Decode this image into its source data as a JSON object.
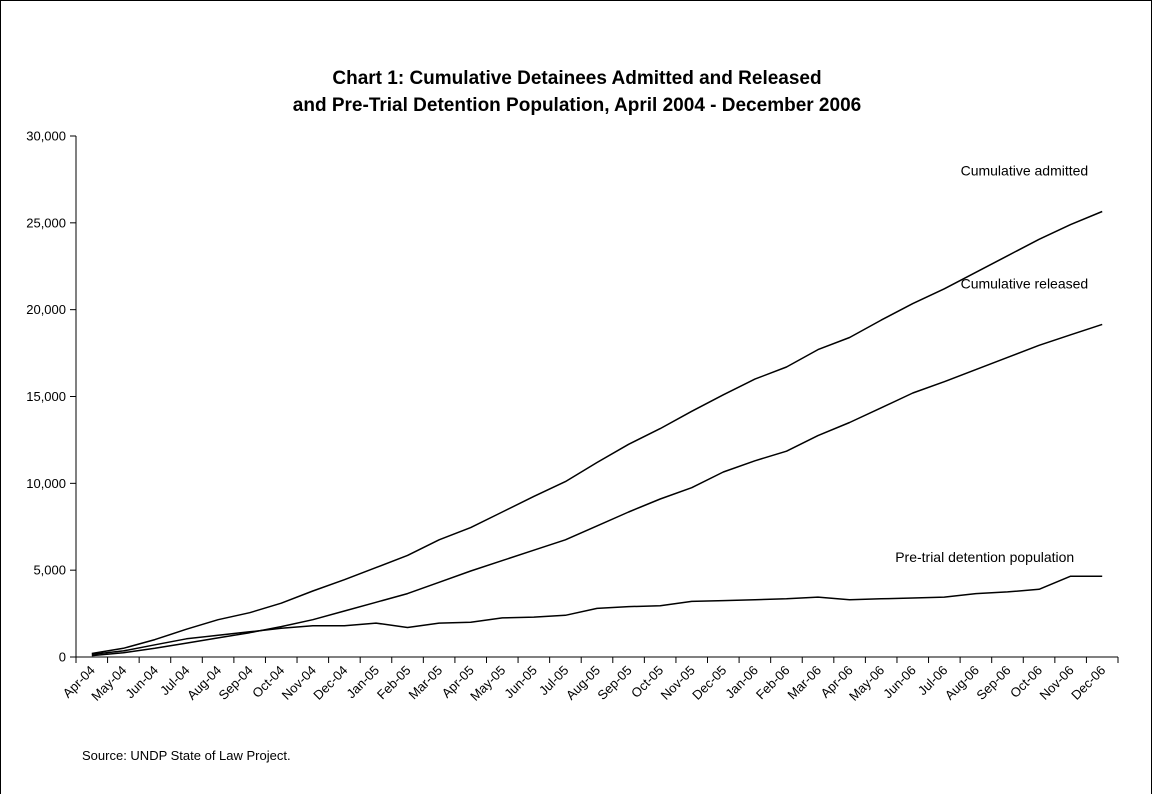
{
  "chart_data": {
    "type": "line",
    "title_lines": [
      "Chart 1: Cumulative Detainees Admitted and Released",
      "and Pre-Trial Detention Population, April 2004 - December 2006"
    ],
    "xlabel": "",
    "ylabel": "",
    "ylim": [
      0,
      30000
    ],
    "yticks": [
      {
        "value": 0,
        "label": "0"
      },
      {
        "value": 5000,
        "label": "5,000"
      },
      {
        "value": 10000,
        "label": "10,000"
      },
      {
        "value": 15000,
        "label": "15,000"
      },
      {
        "value": 20000,
        "label": "20,000"
      },
      {
        "value": 25000,
        "label": "25,000"
      },
      {
        "value": 30000,
        "label": "30,000"
      }
    ],
    "grid": false,
    "legend": "none",
    "categories": [
      "Apr-04",
      "May-04",
      "Jun-04",
      "Jul-04",
      "Aug-04",
      "Sep-04",
      "Oct-04",
      "Nov-04",
      "Dec-04",
      "Jan-05",
      "Feb-05",
      "Mar-05",
      "Apr-05",
      "May-05",
      "Jun-05",
      "Jul-05",
      "Aug-05",
      "Sep-05",
      "Oct-05",
      "Nov-05",
      "Dec-05",
      "Jan-06",
      "Feb-06",
      "Mar-06",
      "Apr-06",
      "May-06",
      "Jun-06",
      "Jul-06",
      "Aug-06",
      "Sep-06",
      "Oct-06",
      "Nov-06",
      "Dec-06"
    ],
    "series": [
      {
        "name": "Cumulative admitted",
        "values": [
          200,
          500,
          1000,
          1600,
          2150,
          2550,
          3100,
          3800,
          4450,
          5150,
          5850,
          6750,
          7450,
          8350,
          9250,
          10100,
          11200,
          12250,
          13150,
          14150,
          15100,
          16000,
          16700,
          17700,
          18400,
          19400,
          20350,
          21200,
          22150,
          23100,
          24050,
          24900,
          25650
        ]
      },
      {
        "name": "Cumulative released",
        "values": [
          80,
          250,
          500,
          800,
          1100,
          1400,
          1750,
          2150,
          2650,
          3150,
          3650,
          4300,
          4950,
          5550,
          6150,
          6750,
          7550,
          8350,
          9100,
          9750,
          10650,
          11300,
          11850,
          12750,
          13500,
          14350,
          15200,
          15850,
          16550,
          17250,
          17950,
          18550,
          19150
        ]
      },
      {
        "name": "Pre-trial detention population",
        "values": [
          150,
          350,
          700,
          1050,
          1250,
          1450,
          1650,
          1800,
          1800,
          1950,
          1700,
          1950,
          2000,
          2250,
          2300,
          2400,
          2800,
          2900,
          2950,
          3200,
          3250,
          3300,
          3350,
          3450,
          3300,
          3350,
          3400,
          3450,
          3650,
          3750,
          3900,
          4650,
          4650
        ]
      }
    ],
    "source": "Source: UNDP State of Law Project."
  }
}
